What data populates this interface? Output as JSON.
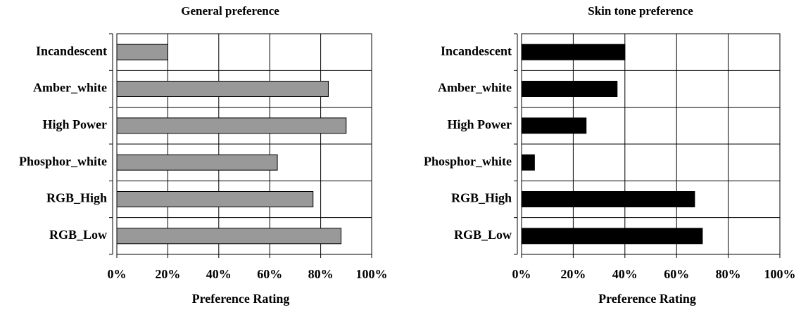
{
  "chart_data": [
    {
      "type": "bar",
      "orientation": "horizontal",
      "title": "General preference",
      "x_label": "Preference Rating",
      "categories": [
        "Incandescent",
        "Amber_white",
        "High Power",
        "Phosphor_white",
        "RGB_High",
        "RGB_Low"
      ],
      "values": [
        20,
        83,
        90,
        63,
        77,
        88
      ],
      "color": "#999999",
      "xlim": [
        0,
        100
      ],
      "xticks": [
        {
          "value": 0,
          "label": "0%"
        },
        {
          "value": 20,
          "label": "20%"
        },
        {
          "value": 40,
          "label": "40%"
        },
        {
          "value": 60,
          "label": "60%"
        },
        {
          "value": 80,
          "label": "80%"
        },
        {
          "value": 100,
          "label": "100%"
        }
      ],
      "grid": true
    },
    {
      "type": "bar",
      "orientation": "horizontal",
      "title": "Skin tone preference",
      "x_label": "Preference Rating",
      "categories": [
        "Incandescent",
        "Amber_white",
        "High Power",
        "Phosphor_white",
        "RGB_High",
        "RGB_Low"
      ],
      "values": [
        40,
        37,
        25,
        5,
        67,
        70
      ],
      "color": "#000000",
      "xlim": [
        0,
        100
      ],
      "xticks": [
        {
          "value": 0,
          "label": "0%"
        },
        {
          "value": 20,
          "label": "20%"
        },
        {
          "value": 40,
          "label": "40%"
        },
        {
          "value": 60,
          "label": "60%"
        },
        {
          "value": 80,
          "label": "80%"
        },
        {
          "value": 100,
          "label": "100%"
        }
      ],
      "grid": true
    }
  ]
}
